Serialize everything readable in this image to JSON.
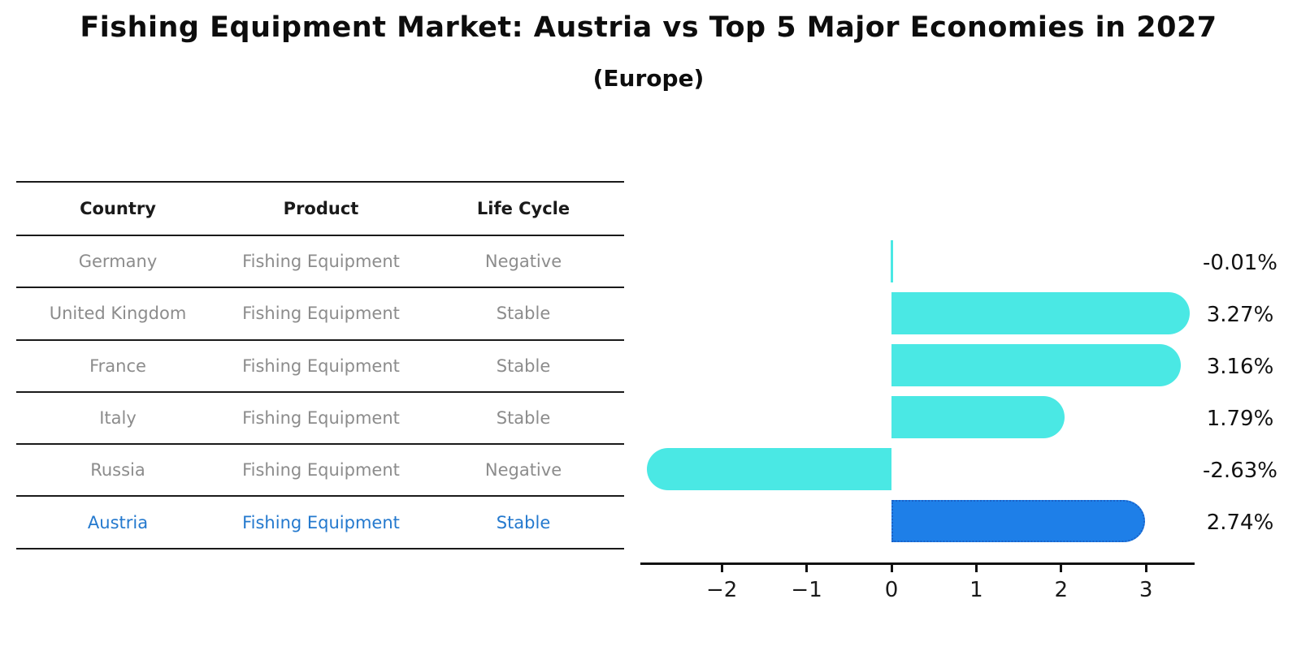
{
  "title": "Fishing Equipment Market: Austria vs Top 5 Major Economies in 2027",
  "subtitle": "(Europe)",
  "table": {
    "headers": [
      "Country",
      "Product",
      "Life Cycle"
    ],
    "rows": [
      {
        "country": "Germany",
        "product": "Fishing Equipment",
        "life_cycle": "Negative",
        "highlight": false
      },
      {
        "country": "United Kingdom",
        "product": "Fishing Equipment",
        "life_cycle": "Stable",
        "highlight": false
      },
      {
        "country": "France",
        "product": "Fishing Equipment",
        "life_cycle": "Stable",
        "highlight": false
      },
      {
        "country": "Italy",
        "product": "Fishing Equipment",
        "life_cycle": "Stable",
        "highlight": false
      },
      {
        "country": "Russia",
        "product": "Fishing Equipment",
        "life_cycle": "Negative",
        "highlight": false
      },
      {
        "country": "Austria",
        "product": "Fishing Equipment",
        "life_cycle": "Stable",
        "highlight": true
      }
    ]
  },
  "chart_data": {
    "type": "bar",
    "orientation": "horizontal",
    "title": "Fishing Equipment Market: Austria vs Top 5 Major Economies in 2027 (Europe)",
    "categories": [
      "Germany",
      "United Kingdom",
      "France",
      "Italy",
      "Russia",
      "Austria"
    ],
    "values": [
      -0.01,
      3.27,
      3.16,
      1.79,
      -2.63,
      2.74
    ],
    "value_labels": [
      "-0.01%",
      "3.27%",
      "3.16%",
      "1.79%",
      "-2.63%",
      "2.74%"
    ],
    "highlight_index": 5,
    "x_ticks": [
      {
        "value": -2,
        "label": "−2"
      },
      {
        "value": -1,
        "label": "−1"
      },
      {
        "value": 0,
        "label": "0"
      },
      {
        "value": 1,
        "label": "1"
      },
      {
        "value": 2,
        "label": "2"
      },
      {
        "value": 3,
        "label": "3"
      }
    ],
    "xlim": [
      -2.96,
      3.57
    ],
    "grid": false,
    "legend": false,
    "bar_color": "#4AE8E4",
    "highlight_color": "#1E7FE8",
    "highlight_border_color": "#1A62C8"
  },
  "colors": {
    "accent_cyan": "#4AE8E4",
    "accent_blue": "#1E7FE8",
    "highlight_text": "#2479CE",
    "muted_text": "#8C8C8C",
    "line": "#1A1A1A"
  }
}
